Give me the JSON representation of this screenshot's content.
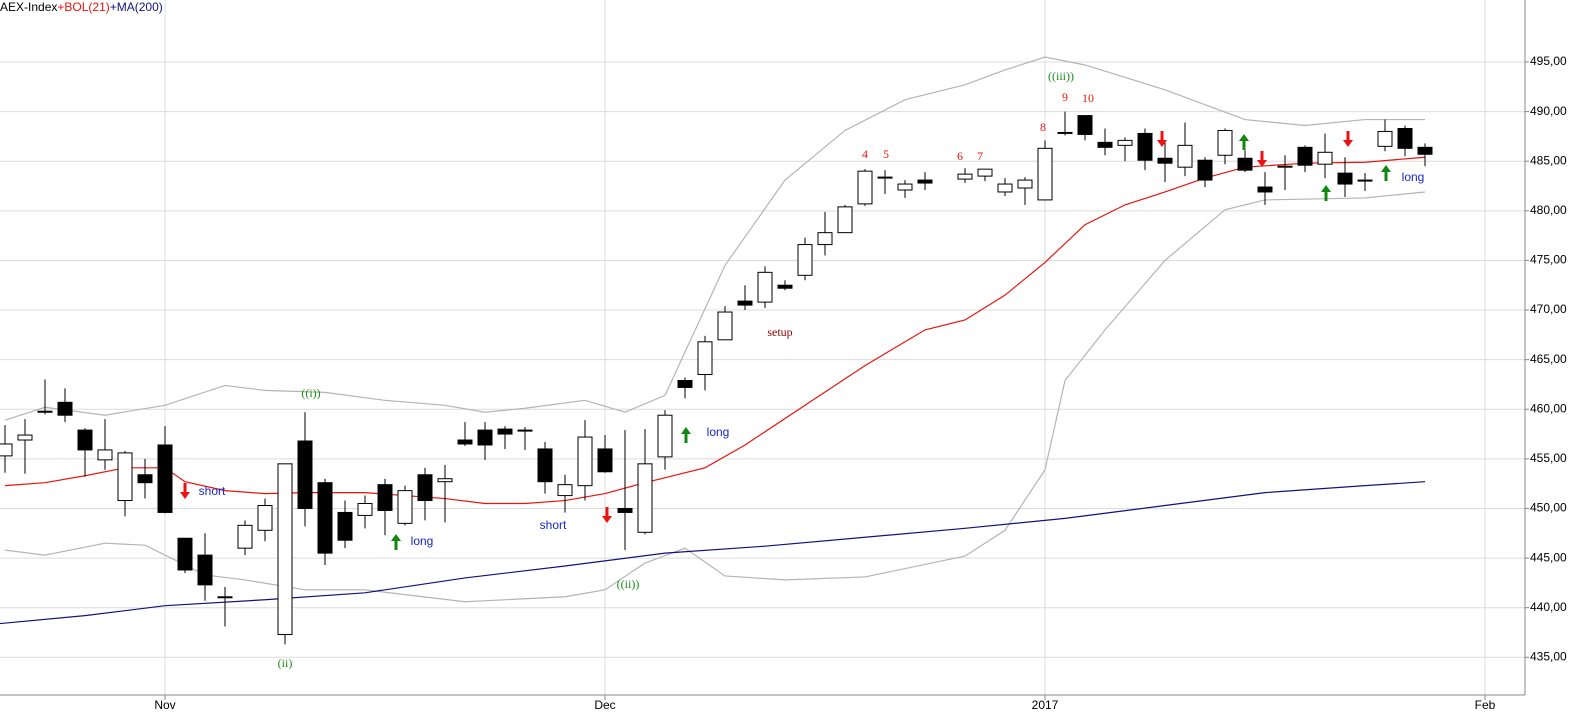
{
  "chart_data": {
    "type": "candlestick",
    "title": "AEX-Index",
    "xlim": [
      -8.25,
      68
    ],
    "xticks": [
      {
        "value": 0,
        "label": "Nov"
      },
      {
        "value": 22,
        "label": "Dec"
      },
      {
        "value": 44,
        "label": "2017"
      },
      {
        "value": 66,
        "label": "Feb"
      }
    ],
    "ylim": [
      431.2,
      501.25
    ],
    "yticks": [
      {
        "value": 435,
        "label": "435,00"
      },
      {
        "value": 440,
        "label": "440,00"
      },
      {
        "value": 445,
        "label": "445,00"
      },
      {
        "value": 450,
        "label": "450,00"
      },
      {
        "value": 455,
        "label": "455,00"
      },
      {
        "value": 460,
        "label": "460,00"
      },
      {
        "value": 465,
        "label": "465,00"
      },
      {
        "value": 470,
        "label": "470,00"
      },
      {
        "value": 475,
        "label": "475,00"
      },
      {
        "value": 480,
        "label": "480,00"
      },
      {
        "value": 485,
        "label": "485,00"
      },
      {
        "value": 490,
        "label": "490,00"
      },
      {
        "value": 495,
        "label": "495,00"
      }
    ],
    "grid": true,
    "up_color": "#ffffff",
    "down_color": "#000000",
    "x": [
      -8,
      -7,
      -6,
      -5,
      -4,
      -3,
      -2,
      -1,
      0,
      1,
      2,
      3,
      4,
      5,
      6,
      7,
      8,
      9,
      10,
      11,
      12,
      13,
      14,
      15,
      16,
      17,
      18,
      19,
      20,
      21,
      22,
      23,
      24,
      25,
      26,
      27,
      28,
      29,
      30,
      31,
      32,
      33,
      34,
      35,
      36,
      37,
      38,
      40,
      41,
      42,
      43,
      44,
      45,
      46,
      47,
      48,
      49,
      50,
      51,
      52,
      53,
      54,
      55,
      56,
      57,
      58,
      59,
      60,
      61,
      62,
      63
    ],
    "open": [
      455.3,
      456.9,
      459.7,
      460.7,
      457.9,
      454.9,
      450.8,
      453.4,
      456.4,
      447,
      445.3,
      441,
      446,
      447.8,
      437.3,
      456.8,
      452.6,
      449.6,
      449.3,
      452.4,
      448.5,
      453.4,
      452.7,
      456.9,
      457.9,
      458,
      457.9,
      456,
      451.3,
      452.3,
      456,
      450,
      447.6,
      455.2,
      462.9,
      463.5,
      467,
      470.9,
      470.8,
      472.5,
      473.5,
      476.6,
      477.8,
      480.7,
      483.3,
      482.1,
      483.1,
      483.2,
      483.5,
      481.9,
      482.3,
      481.1,
      487.8,
      489.6,
      486.9,
      486.6,
      487.8,
      485.3,
      484.4,
      485.1,
      485.6,
      485.3,
      482.4,
      484.4,
      486.4,
      484.7,
      483.8,
      483,
      486.5,
      488.3,
      486.4
    ],
    "high": [
      458.4,
      459,
      463,
      462.1,
      458.1,
      459,
      455.8,
      455,
      458.3,
      447,
      447.5,
      442.1,
      448.8,
      451,
      454.5,
      459.7,
      453,
      450.8,
      451.3,
      453,
      452.3,
      454.1,
      454.4,
      458.7,
      458.7,
      458.3,
      458.2,
      456.7,
      453.4,
      458.9,
      457.4,
      457.9,
      458,
      459.9,
      463.2,
      467.4,
      470.4,
      472.5,
      474.4,
      473,
      477.3,
      479.9,
      480.6,
      484.2,
      484.1,
      483.1,
      483.9,
      484.3,
      484.2,
      483.3,
      483.4,
      487.1,
      490,
      489.6,
      488.3,
      487.4,
      488.3,
      486.9,
      488.9,
      485.4,
      488.3,
      486.1,
      483.9,
      485.6,
      486.6,
      487.8,
      485.4,
      483.8,
      489.2,
      488.6,
      486.8
    ],
    "low": [
      453.6,
      453.5,
      459.5,
      458.7,
      453.2,
      453.9,
      449.2,
      451,
      449.5,
      443.5,
      440.7,
      438.1,
      445.3,
      446.7,
      436.3,
      448.2,
      444.3,
      446,
      448,
      447.3,
      448.3,
      448.8,
      448.6,
      456.3,
      454.9,
      456,
      455.9,
      451.5,
      449.6,
      450.8,
      453.6,
      445.8,
      447.4,
      453.9,
      461.1,
      461.9,
      467,
      470,
      470.2,
      472,
      473,
      475.5,
      477.8,
      480.5,
      481.7,
      481.3,
      482.1,
      482.8,
      483,
      481.5,
      480.6,
      481.1,
      487.6,
      487.1,
      485.6,
      485,
      484.1,
      482.9,
      483.5,
      482.4,
      484.7,
      483.9,
      480.6,
      482.1,
      483.9,
      483.3,
      481.4,
      482,
      486,
      485.5,
      484.5
    ],
    "close": [
      456.5,
      457.4,
      459.8,
      459.4,
      455.9,
      455.9,
      455.6,
      452.6,
      449.6,
      443.8,
      442.3,
      441.1,
      448.3,
      450.3,
      454.5,
      450,
      445.5,
      446.8,
      450.5,
      449.8,
      451.8,
      450.8,
      453,
      456.5,
      456.4,
      457.5,
      457.8,
      452.7,
      452.4,
      457.2,
      453.7,
      449.6,
      454.5,
      459.4,
      462.2,
      466.8,
      469.8,
      470.5,
      473.8,
      472.2,
      476.6,
      477.8,
      480.4,
      484,
      483.4,
      482.7,
      482.8,
      483.7,
      484.2,
      482.7,
      483.1,
      486.3,
      487.9,
      487.7,
      486.4,
      487.1,
      485.1,
      484.8,
      486.6,
      483.1,
      488.1,
      484.1,
      481.9,
      484.5,
      484.6,
      485.9,
      482.7,
      483.1,
      488,
      486.3,
      485.7
    ],
    "lines": [
      {
        "color": "#b4b4b4",
        "x": [
          -8,
          -6,
          -3,
          0,
          3,
          5,
          8,
          11,
          14,
          16,
          18,
          21,
          23,
          25,
          28,
          31,
          34,
          37,
          40,
          42,
          44,
          46,
          50,
          54,
          57,
          60,
          63
        ],
        "values": [
          458.9,
          460.2,
          459.4,
          460.4,
          462.4,
          461.9,
          461.7,
          460.9,
          460.4,
          459.7,
          460.1,
          460.9,
          459.7,
          461.4,
          474.5,
          483.1,
          488.1,
          491.2,
          492.7,
          494.2,
          495.5,
          494.7,
          492.2,
          489.2,
          488.6,
          489.2,
          489.2
        ]
      },
      {
        "color": "#b4b4b4",
        "x": [
          -8,
          -6,
          -3,
          -1,
          2,
          4,
          7,
          10,
          15,
          20,
          22,
          24,
          26,
          28,
          31,
          35,
          40,
          42,
          44,
          45,
          47,
          50,
          53,
          55,
          60,
          63
        ],
        "values": [
          445.8,
          445.3,
          446.5,
          446.3,
          443.3,
          442.8,
          441.8,
          441.8,
          440.6,
          441.1,
          441.8,
          444.5,
          446,
          443.2,
          442.8,
          443.1,
          445.2,
          447.8,
          453.9,
          462.9,
          468,
          475,
          480.1,
          481.1,
          481.3,
          481.9
        ]
      },
      {
        "name": "+BOL(21)",
        "color": "#e8140c",
        "x": [
          -8,
          -6,
          -4,
          -2,
          0,
          1,
          3,
          5,
          7,
          10,
          14,
          16,
          18,
          20,
          22,
          24,
          27,
          29,
          32,
          35,
          38,
          40,
          42,
          44,
          46,
          48,
          50,
          52,
          54,
          57,
          60,
          63
        ],
        "values": [
          452.3,
          452.6,
          453.3,
          454.1,
          454.1,
          452.7,
          451.8,
          451.5,
          451.6,
          451.6,
          451,
          450.5,
          450.5,
          450.8,
          451.5,
          452.6,
          454.1,
          456.4,
          460.4,
          464.4,
          468,
          469,
          471.5,
          474.8,
          478.6,
          480.6,
          481.9,
          483.3,
          484.4,
          484.8,
          484.9,
          485.4
        ]
      },
      {
        "name": "+MA(200)",
        "color": "#10147a",
        "x": [
          -8.25,
          -4,
          0,
          5,
          10,
          15,
          20,
          25,
          30,
          35,
          40,
          45,
          50,
          55,
          60,
          63
        ],
        "values": [
          438.4,
          439.2,
          440.2,
          440.8,
          441.5,
          443,
          444.2,
          445.5,
          446.2,
          447.1,
          448,
          449,
          450.3,
          451.6,
          452.3,
          452.7
        ]
      }
    ],
    "annotations": [
      {
        "text": "((i))",
        "color": "#1a8c1a"
      },
      {
        "text": "(ii)",
        "color": "#1a8c1a"
      },
      {
        "text": "((ii))",
        "color": "#1a8c1a"
      },
      {
        "text": "((iii))",
        "color": "#1a8c1a"
      },
      {
        "text": "setup",
        "color": "#8b0000"
      },
      {
        "text": "4",
        "color": "#e8140c"
      },
      {
        "text": "5",
        "color": "#e8140c"
      },
      {
        "text": "6",
        "color": "#e8140c"
      },
      {
        "text": "7",
        "color": "#e8140c"
      },
      {
        "text": "8",
        "color": "#e8140c"
      },
      {
        "text": "9",
        "color": "#e8140c"
      },
      {
        "text": "10",
        "color": "#e8140c"
      },
      {
        "text": "short",
        "color": "#1428c8"
      },
      {
        "text": "long",
        "color": "#1428c8"
      },
      {
        "text": "short",
        "color": "#1428c8"
      },
      {
        "text": "long",
        "color": "#1428c8"
      },
      {
        "text": "long",
        "color": "#1428c8"
      }
    ]
  }
}
